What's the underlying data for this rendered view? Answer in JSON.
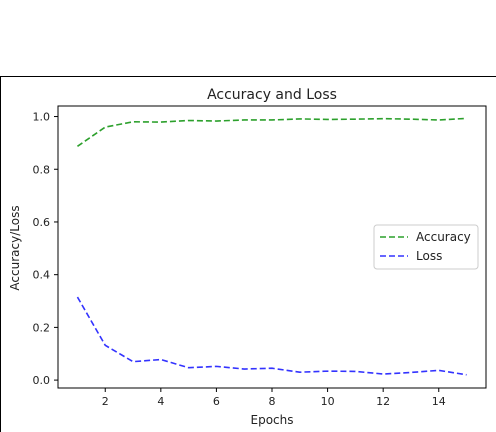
{
  "chart_data": {
    "type": "line",
    "title": "Accuracy and Loss",
    "xlabel": "Epochs",
    "ylabel": "Accuracy/Loss",
    "x": [
      1,
      2,
      3,
      4,
      5,
      6,
      7,
      8,
      9,
      10,
      11,
      12,
      13,
      14,
      15
    ],
    "xlim": [
      0.3,
      15.7
    ],
    "ylim": [
      -0.03,
      1.04
    ],
    "xticks": [
      2,
      4,
      6,
      8,
      10,
      12,
      14
    ],
    "xtick_labels": [
      "2",
      "4",
      "6",
      "8",
      "10",
      "12",
      "14"
    ],
    "yticks": [
      0.0,
      0.2,
      0.4,
      0.6,
      0.8,
      1.0
    ],
    "ytick_labels": [
      "0.0",
      "0.2",
      "0.4",
      "0.6",
      "0.8",
      "1.0"
    ],
    "grid": false,
    "legend_position": "center-right",
    "series": [
      {
        "name": "Accuracy",
        "color": "#2ca02c",
        "linestyle": "dashed",
        "values": [
          0.887,
          0.96,
          0.98,
          0.979,
          0.985,
          0.983,
          0.987,
          0.987,
          0.991,
          0.989,
          0.99,
          0.992,
          0.99,
          0.987,
          0.993
        ]
      },
      {
        "name": "Loss",
        "color": "#3333ff",
        "linestyle": "dashed",
        "values": [
          0.315,
          0.132,
          0.07,
          0.078,
          0.047,
          0.052,
          0.042,
          0.045,
          0.03,
          0.034,
          0.033,
          0.023,
          0.029,
          0.037,
          0.02
        ]
      }
    ]
  }
}
